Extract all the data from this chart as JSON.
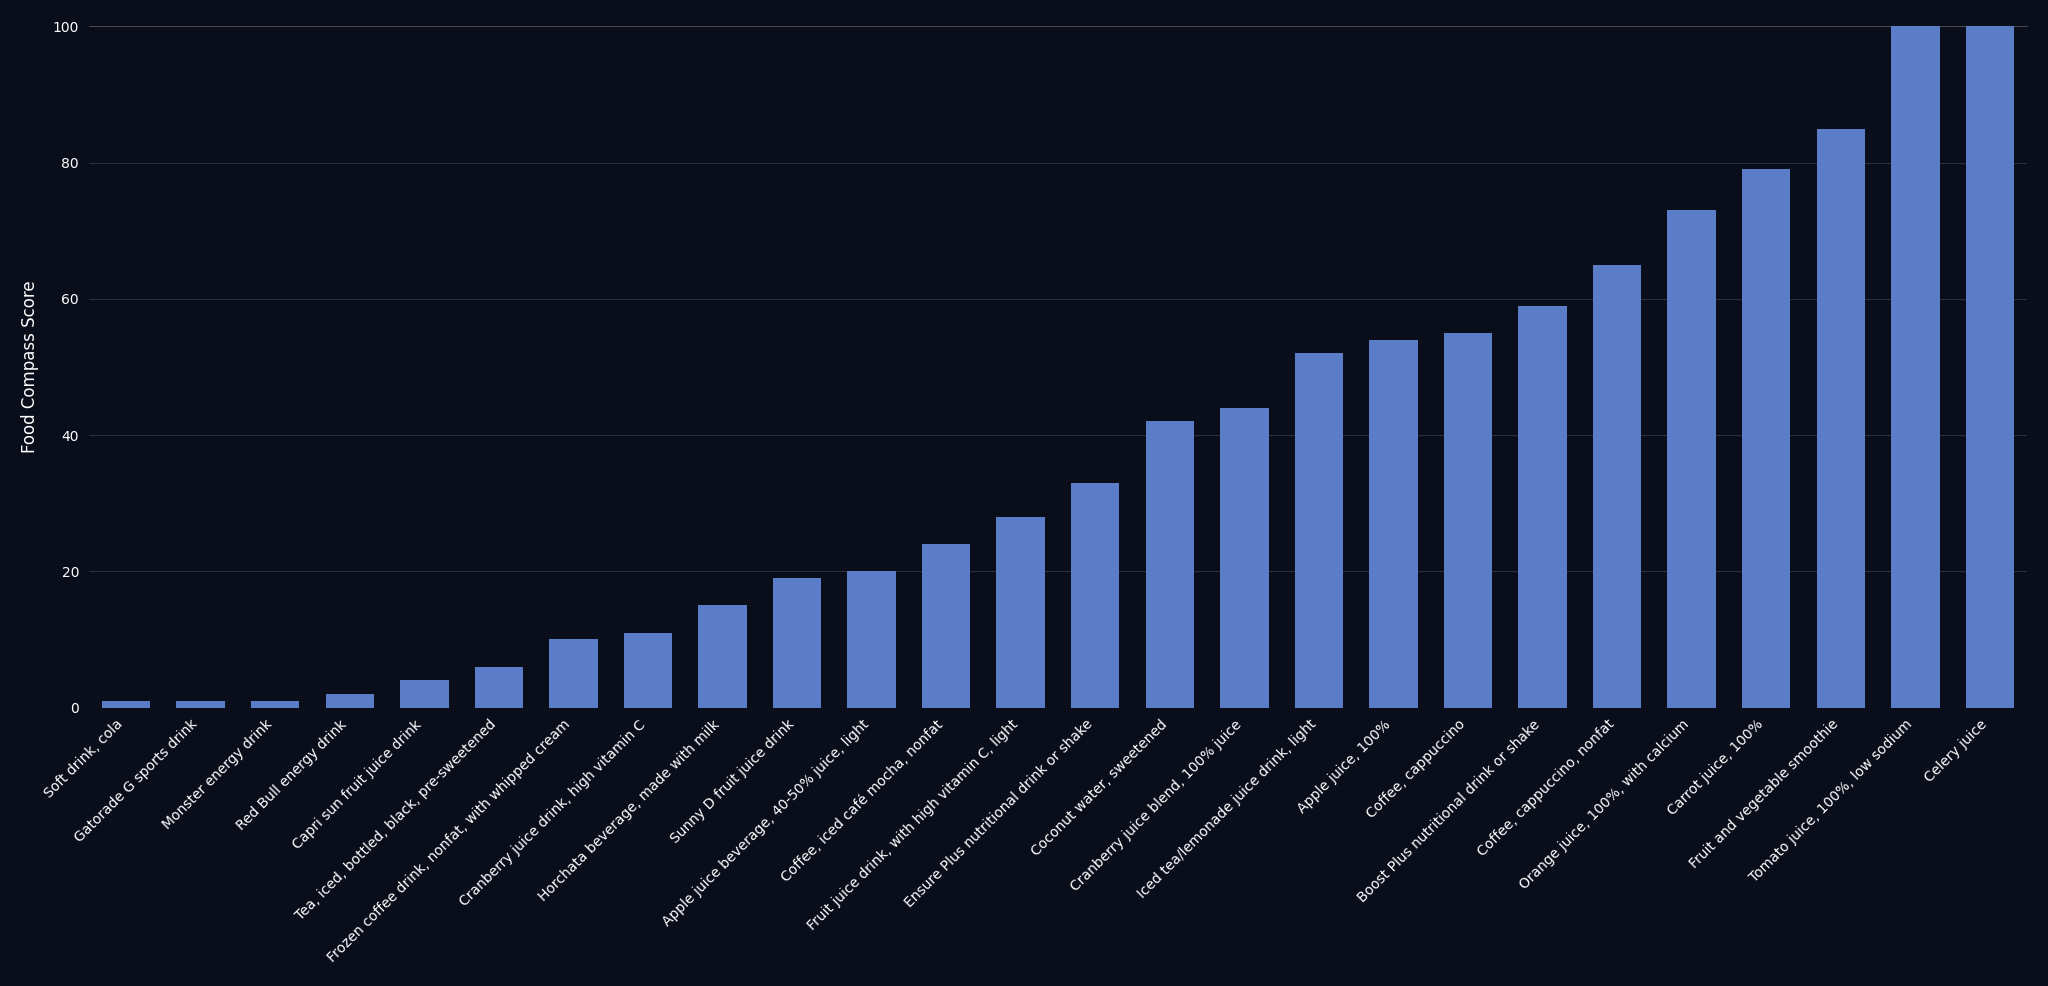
{
  "categories": [
    "Soft drink, cola",
    "Gatorade G sports drink",
    "Monster energy drink",
    "Red Bull energy drink",
    "Capri sun fruit juice drink",
    "Tea, iced, bottled, black, pre-sweetened",
    "Frozen coffee drink, nonfat, with whipped cream",
    "Cranberry juice drink, high vitamin C",
    "Horchata beverage, made with milk",
    "Sunny D fruit juice drink",
    "Apple juice beverage, 40-50% juice, light",
    "Coffee, iced café mocha, nonfat",
    "Fruit juice drink, with high vitamin C, light",
    "Ensure Plus nutritional drink or shake",
    "Coconut water, sweetened",
    "Cranberry juice blend, 100% juice",
    "Iced tea/lemonade juice drink, light",
    "Apple juice, 100%",
    "Coffee, cappuccino",
    "Boost Plus nutritional drink or shake",
    "Coffee, cappuccino, nonfat",
    "Orange juice, 100%, with calcium",
    "Carrot juice, 100%",
    "Fruit and vegetable smoothie",
    "Tomato juice, 100%, low sodium",
    "Celery juice"
  ],
  "values": [
    1,
    1,
    1,
    2,
    4,
    6,
    10,
    11,
    15,
    19,
    20,
    24,
    28,
    33,
    42,
    44,
    52,
    54,
    55,
    59,
    65,
    73,
    79,
    85,
    100,
    100
  ],
  "bar_color": "#5b7dc8",
  "ylabel": "Food Compass Score",
  "ylim": [
    0,
    100
  ],
  "yticks": [
    0,
    20,
    40,
    60,
    80,
    100
  ],
  "background_color": "#0a0e1a",
  "axes_background": "#0a0e1a",
  "text_color": "#ffffff",
  "grid_color": "#2a2e3a",
  "label_fontsize": 12,
  "tick_fontsize": 10,
  "bar_width": 0.65
}
